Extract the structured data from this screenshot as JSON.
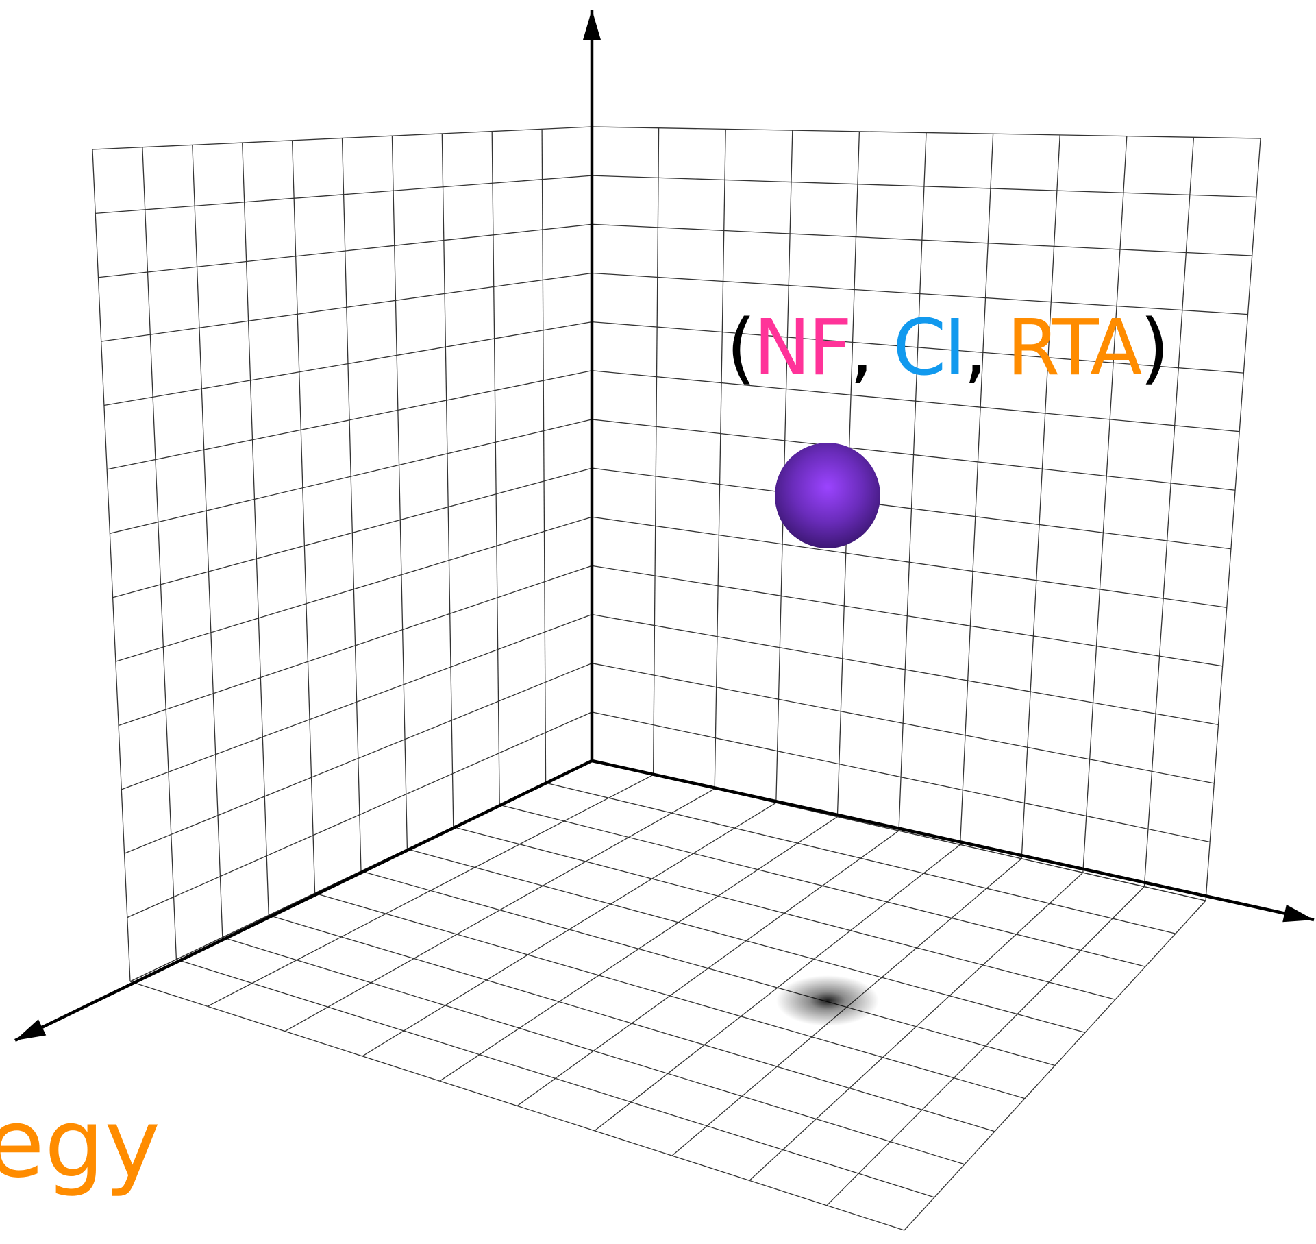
{
  "point_label": {
    "open": "(",
    "nf": "NF",
    "sep1": ", ",
    "ci": "CI",
    "sep2": ", ",
    "rta": "RTA",
    "close": ")"
  },
  "axis_label": {
    "text": "egy"
  },
  "colors": {
    "nf": "#ff3399",
    "ci": "#1199ee",
    "rta": "#ff8c00",
    "paren": "#000000",
    "sphere": "#7a33cc",
    "grid": "#333333",
    "axis": "#000000",
    "shadow": "#000000"
  },
  "icons": {
    "point": "sphere-icon",
    "shadow": "shadow-icon"
  }
}
